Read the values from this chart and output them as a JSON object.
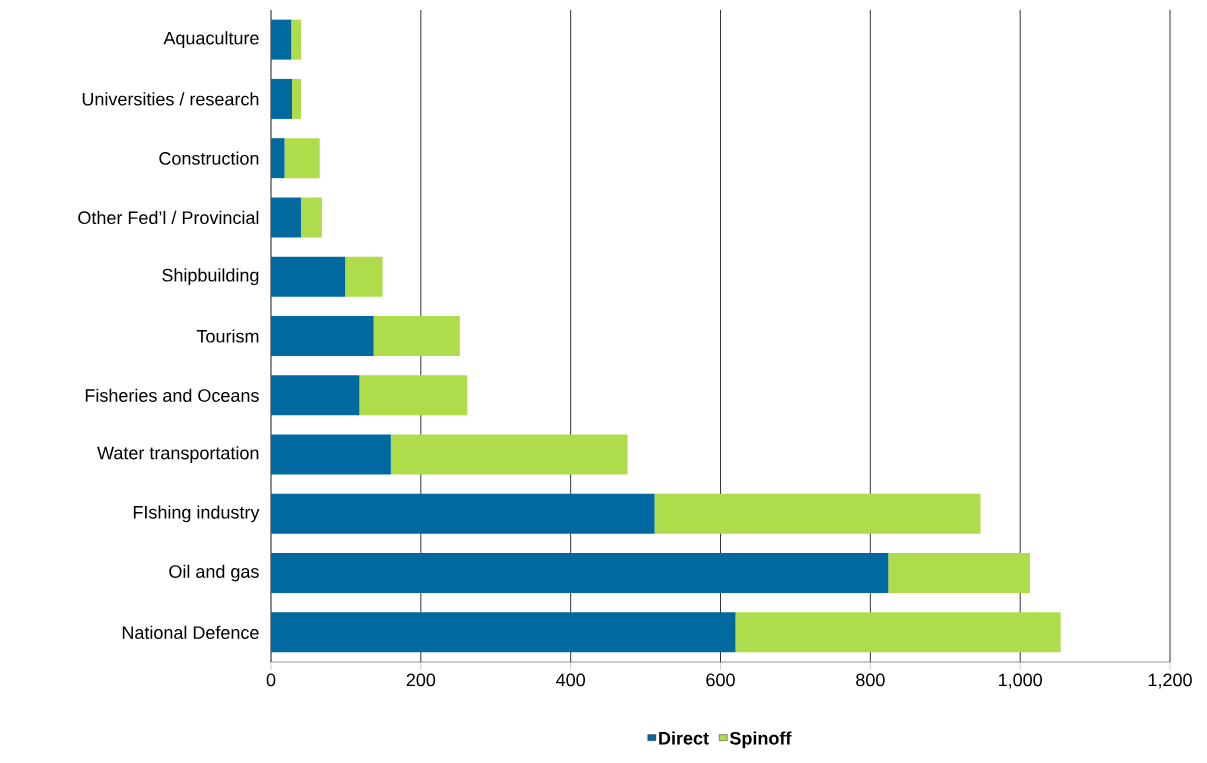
{
  "chart_data": {
    "type": "bar",
    "orientation": "horizontal",
    "stacked": true,
    "categories": [
      "Aquaculture",
      "Universities / research",
      "Construction",
      "Other Fed’l / Provincial",
      "Shipbuilding",
      "Tourism",
      "Fisheries and Oceans",
      "Water transportation",
      "FIshing industry",
      "Oil and gas",
      "National Defence"
    ],
    "series": [
      {
        "name": "Direct",
        "color": "#0069a0",
        "values": [
          27,
          28,
          18,
          40,
          99,
          137,
          118,
          160,
          512,
          824,
          620
        ]
      },
      {
        "name": "Spinoff",
        "color": "#aedc4a",
        "values": [
          13,
          12,
          47,
          28,
          50,
          115,
          144,
          316,
          435,
          189,
          434
        ]
      }
    ],
    "xlim": [
      0,
      1200
    ],
    "xticks": [
      0,
      200,
      400,
      600,
      800,
      {
        "value": 1000,
        "label": "1,000"
      },
      {
        "value": 1200,
        "label": "1,200"
      }
    ],
    "grid": "x",
    "legend": "bottom"
  }
}
